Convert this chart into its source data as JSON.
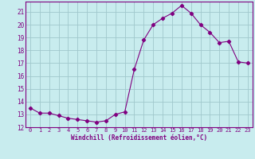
{
  "x": [
    0,
    1,
    2,
    3,
    4,
    5,
    6,
    7,
    8,
    9,
    10,
    11,
    12,
    13,
    14,
    15,
    16,
    17,
    18,
    19,
    20,
    21,
    22,
    23
  ],
  "y": [
    13.5,
    13.1,
    13.1,
    12.9,
    12.7,
    12.6,
    12.5,
    12.4,
    12.5,
    13.0,
    13.2,
    16.5,
    18.8,
    20.0,
    20.5,
    20.9,
    21.5,
    20.9,
    20.0,
    19.4,
    18.6,
    18.7,
    17.1,
    17.0
  ],
  "line_color": "#800080",
  "marker": "D",
  "marker_size": 2.2,
  "bg_color": "#c8ecee",
  "grid_color": "#a0c8cc",
  "xlabel": "Windchill (Refroidissement éolien,°C)",
  "xlabel_color": "#800080",
  "tick_color": "#800080",
  "ylim": [
    12,
    21.8
  ],
  "xlim": [
    -0.5,
    23.5
  ],
  "yticks": [
    12,
    13,
    14,
    15,
    16,
    17,
    18,
    19,
    20,
    21
  ],
  "xticks": [
    0,
    1,
    2,
    3,
    4,
    5,
    6,
    7,
    8,
    9,
    10,
    11,
    12,
    13,
    14,
    15,
    16,
    17,
    18,
    19,
    20,
    21,
    22,
    23
  ],
  "spine_color": "#800080"
}
